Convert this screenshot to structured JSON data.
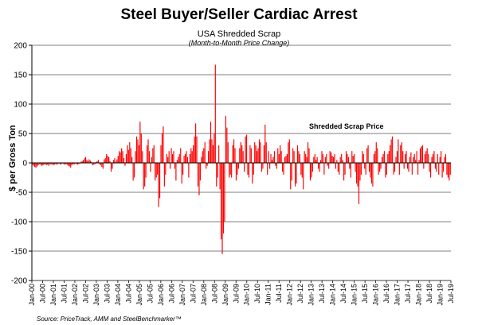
{
  "chart_data": {
    "type": "bar",
    "title": "Steel Buyer/Seller Cardiac Arrest",
    "subtitle": "USA Shredded Scrap",
    "subtitle2": "(Month-to-Month Price Change)",
    "ylabel": "$ per Gross Ton",
    "xlabel": "",
    "ylim": [
      -200,
      200
    ],
    "yticks": [
      -200,
      -150,
      -100,
      -50,
      0,
      50,
      100,
      150,
      200
    ],
    "grid": true,
    "legend": "Shredded Scrap Price",
    "source": "Source: PriceTrack, AMM and SteelBenchmarker™",
    "color": "#ff0000",
    "x_tick_labels": [
      "Jan-00",
      "Jul-00",
      "Jan-01",
      "Jul-01",
      "Jan-02",
      "Jul-02",
      "Jan-03",
      "Jul-03",
      "Jan-04",
      "Jul-04",
      "Jan-05",
      "Jul-05",
      "Jan-06",
      "Jul-06",
      "Jan-07",
      "Jul-07",
      "Jan-08",
      "Jul-08",
      "Jan-09",
      "Jul-09",
      "Jan-10",
      "Jul-10",
      "Jan-11",
      "Jul-11",
      "Jan-12",
      "Jul-12",
      "Jan-13",
      "Jul-13",
      "Jan-14",
      "Jul-14",
      "Jan-15",
      "Jul-15",
      "Jan-16",
      "Jul-16",
      "Jan-17",
      "Jul-17",
      "Jan-18",
      "Jul-18",
      "Jan-19",
      "Jul-19"
    ],
    "series": [
      {
        "name": "Shredded Scrap Price",
        "values": [
          -3,
          -5,
          -7,
          -8,
          -6,
          -4,
          -2,
          -3,
          -5,
          -4,
          -3,
          -2,
          -4,
          -3,
          -5,
          -2,
          -3,
          -2,
          -4,
          -3,
          -2,
          -3,
          -2,
          -1,
          -3,
          -2,
          -1,
          -2,
          -3,
          -2,
          -3,
          -5,
          -6,
          -8,
          -4,
          -2,
          -3,
          -1,
          -2,
          -3,
          -2,
          -1,
          2,
          3,
          5,
          8,
          10,
          5,
          3,
          6,
          4,
          2,
          -4,
          -3,
          -2,
          2,
          3,
          5,
          -2,
          -4,
          -7,
          -10,
          6,
          8,
          15,
          12,
          10,
          3,
          -15,
          -10,
          5,
          8,
          2,
          6,
          12,
          20,
          18,
          25,
          20,
          8,
          -5,
          15,
          30,
          22,
          35,
          25,
          10,
          -30,
          -25,
          20,
          45,
          40,
          30,
          70,
          50,
          20,
          -45,
          -40,
          -25,
          30,
          40,
          20,
          -15,
          10,
          25,
          30,
          -30,
          -25,
          -20,
          -75,
          -60,
          30,
          50,
          62,
          -40,
          -20,
          15,
          10,
          20,
          -10,
          25,
          15,
          20,
          -10,
          -30,
          5,
          10,
          15,
          25,
          -35,
          -20,
          12,
          15,
          20,
          10,
          -25,
          15,
          25,
          20,
          30,
          45,
          67,
          45,
          -40,
          -55,
          -30,
          10,
          20,
          25,
          35,
          -10,
          -5,
          20,
          40,
          70,
          40,
          30,
          50,
          167,
          -40,
          -25,
          30,
          -45,
          -130,
          -155,
          -120,
          -100,
          80,
          60,
          35,
          -25,
          -20,
          -25,
          30,
          40,
          25,
          -30,
          -20,
          -10,
          25,
          35,
          30,
          20,
          -15,
          45,
          48,
          -20,
          -25,
          30,
          25,
          -35,
          -20,
          35,
          30,
          20,
          25,
          40,
          35,
          -15,
          -10,
          30,
          65,
          35,
          -20,
          20,
          -10,
          15,
          5,
          10,
          20,
          -5,
          -10,
          25,
          15,
          30,
          20,
          -15,
          -20,
          10,
          12,
          15,
          35,
          40,
          -45,
          -30,
          25,
          20,
          -40,
          -35,
          30,
          20,
          15,
          -20,
          -25,
          -45,
          20,
          15,
          10,
          35,
          25,
          -30,
          -25,
          -15,
          10,
          15,
          5,
          10,
          -10,
          -15,
          5,
          20,
          15,
          -20,
          10,
          15,
          -5,
          -10,
          20,
          18,
          12,
          10,
          15,
          -10,
          5,
          -15,
          -20,
          10,
          15,
          5,
          -30,
          -20,
          20,
          15,
          10,
          -10,
          -25,
          20,
          12,
          15,
          -15,
          -35,
          -40,
          -70,
          -30,
          -20,
          20,
          15,
          -10,
          -20,
          25,
          30,
          -15,
          -25,
          -35,
          -40,
          15,
          20,
          35,
          25,
          -20,
          -15,
          -10,
          10,
          15,
          20,
          -25,
          -20,
          15,
          20,
          30,
          40,
          45,
          -20,
          -15,
          10,
          20,
          40,
          -20,
          30,
          35,
          20,
          -10,
          15,
          20,
          -10,
          -15,
          10,
          18,
          -20,
          10,
          15,
          5,
          20,
          -20,
          5,
          25,
          28,
          30,
          -10,
          15,
          20,
          25,
          15,
          -15,
          -25,
          10,
          15,
          20,
          -10,
          -15,
          15,
          -20,
          10,
          20,
          -25,
          -15,
          10,
          15,
          -20,
          -25,
          -30,
          -20
        ]
      }
    ]
  }
}
